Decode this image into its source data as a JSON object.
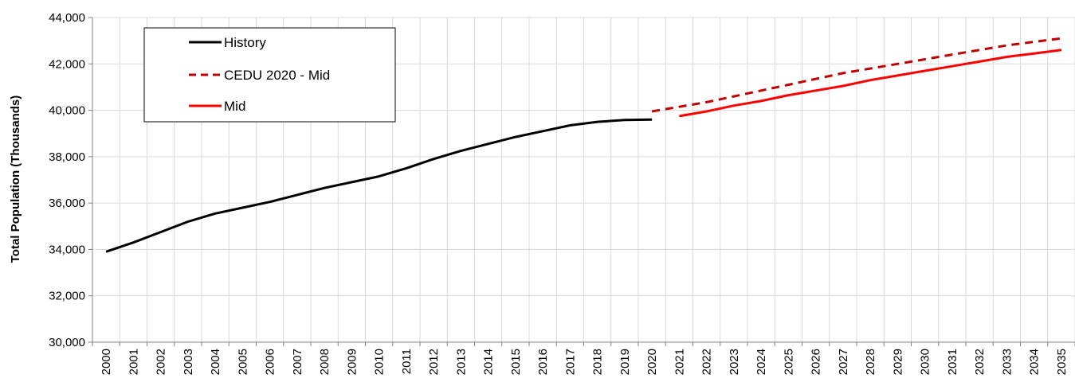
{
  "chart_data": {
    "type": "line",
    "ylabel": "Total  Population (Thousands)",
    "xlabel": "",
    "title": "",
    "ylim": [
      30000,
      44000
    ],
    "yticks": [
      30000,
      32000,
      34000,
      36000,
      38000,
      40000,
      42000,
      44000
    ],
    "ytick_labels": [
      "30,000",
      "32,000",
      "34,000",
      "36,000",
      "38,000",
      "40,000",
      "42,000",
      "44,000"
    ],
    "categories": [
      "2000",
      "2001",
      "2002",
      "2003",
      "2004",
      "2005",
      "2006",
      "2007",
      "2008",
      "2009",
      "2010",
      "2011",
      "2012",
      "2013",
      "2014",
      "2015",
      "2016",
      "2017",
      "2018",
      "2019",
      "2020",
      "2021",
      "2022",
      "2023",
      "2024",
      "2025",
      "2026",
      "2027",
      "2028",
      "2029",
      "2030",
      "2031",
      "2032",
      "2033",
      "2034",
      "2035"
    ],
    "grid": true,
    "legend_position": "top-left",
    "series": [
      {
        "name": "History",
        "color": "#000000",
        "style": "solid",
        "x": [
          "2000",
          "2001",
          "2002",
          "2003",
          "2004",
          "2005",
          "2006",
          "2007",
          "2008",
          "2009",
          "2010",
          "2011",
          "2012",
          "2013",
          "2014",
          "2015",
          "2016",
          "2017",
          "2018",
          "2019",
          "2020"
        ],
        "values": [
          33900,
          34300,
          34750,
          35200,
          35550,
          35800,
          36050,
          36350,
          36650,
          36900,
          37150,
          37500,
          37900,
          38250,
          38550,
          38850,
          39100,
          39350,
          39500,
          39580,
          39600
        ]
      },
      {
        "name": "CEDU 2020 - Mid",
        "color": "#c00000",
        "style": "dashed",
        "x": [
          "2020",
          "2021",
          "2022",
          "2023",
          "2024",
          "2025",
          "2026",
          "2027",
          "2028",
          "2029",
          "2030",
          "2031",
          "2032",
          "2033",
          "2034",
          "2035"
        ],
        "values": [
          39950,
          40150,
          40350,
          40600,
          40850,
          41100,
          41350,
          41600,
          41800,
          42000,
          42200,
          42400,
          42600,
          42800,
          42950,
          43100
        ]
      },
      {
        "name": "Mid",
        "color": "#ff0000",
        "style": "solid",
        "x": [
          "2021",
          "2022",
          "2023",
          "2024",
          "2025",
          "2026",
          "2027",
          "2028",
          "2029",
          "2030",
          "2031",
          "2032",
          "2033",
          "2034",
          "2035"
        ],
        "values": [
          39750,
          39950,
          40200,
          40400,
          40650,
          40850,
          41050,
          41300,
          41500,
          41700,
          41900,
          42100,
          42300,
          42450,
          42600
        ]
      }
    ]
  }
}
